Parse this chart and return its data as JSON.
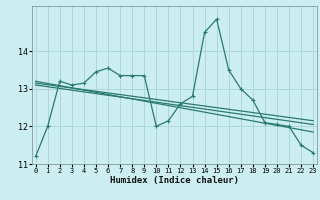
{
  "title": "",
  "xlabel": "Humidex (Indice chaleur)",
  "ylabel": "",
  "background_color": "#cceef0",
  "grid_color": "#aad8dc",
  "line_color": "#2a7a70",
  "x_ticks": [
    0,
    1,
    2,
    3,
    4,
    5,
    6,
    7,
    8,
    9,
    10,
    11,
    12,
    13,
    14,
    15,
    16,
    17,
    18,
    19,
    20,
    21,
    22,
    23
  ],
  "ylim": [
    11.0,
    15.2
  ],
  "xlim": [
    -0.3,
    23.3
  ],
  "yticks": [
    11,
    12,
    13,
    14
  ],
  "series1": {
    "x": [
      0,
      1,
      2,
      3,
      4,
      5,
      6,
      7,
      8,
      9,
      10,
      11,
      12,
      13,
      14,
      15,
      16,
      17,
      18,
      19,
      20,
      21,
      22,
      23
    ],
    "y": [
      11.2,
      12.0,
      13.2,
      13.1,
      13.15,
      13.45,
      13.55,
      13.35,
      13.35,
      13.35,
      12.0,
      12.15,
      12.6,
      12.8,
      14.5,
      14.85,
      13.5,
      13.0,
      12.7,
      12.1,
      12.05,
      12.0,
      11.5,
      11.3
    ]
  },
  "line1": {
    "x": [
      0,
      23
    ],
    "y": [
      13.2,
      11.85
    ]
  },
  "line2": {
    "x": [
      0,
      23
    ],
    "y": [
      13.1,
      12.05
    ]
  },
  "line3": {
    "x": [
      0,
      23
    ],
    "y": [
      13.15,
      12.15
    ]
  }
}
